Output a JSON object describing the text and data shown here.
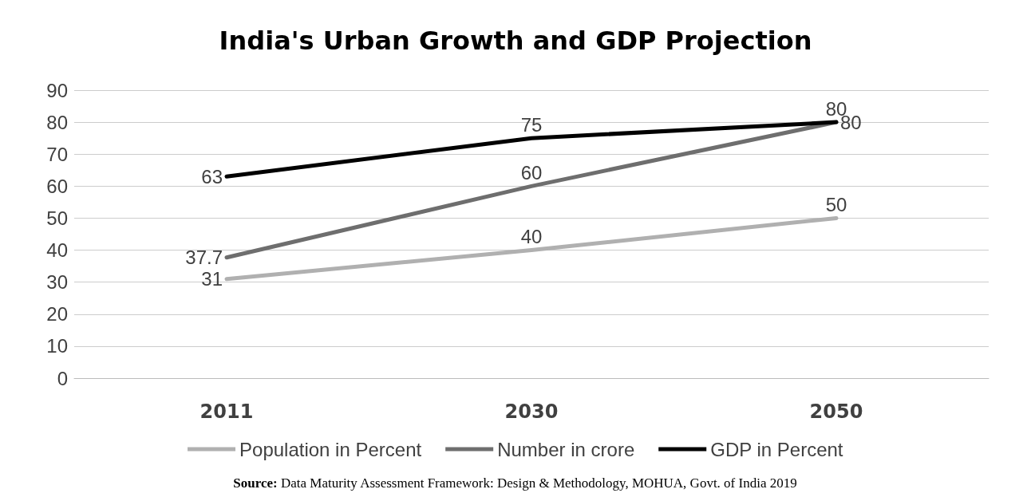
{
  "chart_data": {
    "type": "line",
    "title": "India's Urban Growth and GDP Projection",
    "categories": [
      "2011",
      "2030",
      "2050"
    ],
    "series": [
      {
        "name": "Population in Percent",
        "color": "#b0b0b0",
        "values": [
          31,
          40,
          50
        ]
      },
      {
        "name": "Number in crore",
        "color": "#6e6e6e",
        "values": [
          37.7,
          60,
          80
        ]
      },
      {
        "name": "GDP in Percent",
        "color": "#000000",
        "values": [
          63,
          75,
          80
        ]
      }
    ],
    "ylim": [
      0,
      90
    ],
    "yticks": [
      0,
      10,
      20,
      30,
      40,
      50,
      60,
      70,
      80,
      90
    ],
    "grid": "y",
    "legend": "bottom",
    "marker": "none",
    "line_style": "solid",
    "data_labels": true,
    "annotations": [
      "Source: Data Maturity Assessment Framework: Design & Methodology, MOHUA, Govt. of India 2019"
    ]
  }
}
